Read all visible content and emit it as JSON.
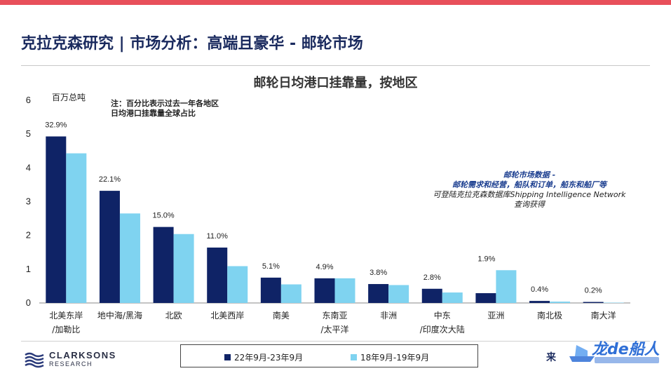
{
  "header": {
    "title": "克拉克森研究 | 市场分析：高端且豪华 - 邮轮市场"
  },
  "colors": {
    "accent_bar": "#e8505b",
    "series_dark": "#0f2366",
    "series_light": "#7fd3f0"
  },
  "note": {
    "line1": "注：百分比表示过去一年各地区",
    "line2": "日均港口挂靠量全球占比"
  },
  "promo": {
    "line1": "邮轮市场数据 -",
    "line2": "邮轮需求和经营，船队和订单，船东和船厂等",
    "line3": "可登陆克拉克森数据库Shipping Intelligence Network",
    "line4": "查询获得"
  },
  "footer": {
    "logo_name": "CLARKSONS",
    "logo_sub": "RESEARCH",
    "source_label": "来",
    "watermark_text": "龙de船人",
    "logo_icon": "clarksons-waves-icon"
  },
  "chart_data": {
    "type": "bar",
    "title": "邮轮日均港口挂靠量，按地区",
    "ylabel": "百万总吨",
    "xlabel": "",
    "ylim": [
      0,
      6
    ],
    "yticks": [
      0,
      1,
      2,
      3,
      4,
      5,
      6
    ],
    "grid": false,
    "legend_position": "bottom",
    "categories": [
      [
        "北美东岸",
        "/加勒比"
      ],
      [
        "地中海/黑海"
      ],
      [
        "北欧"
      ],
      [
        "北美西岸"
      ],
      [
        "南美"
      ],
      [
        "东南亚",
        "/太平洋"
      ],
      [
        "非洲"
      ],
      [
        "中东",
        "/印度次大陆"
      ],
      [
        "亚洲"
      ],
      [
        "南北极"
      ],
      [
        "南大洋"
      ]
    ],
    "series": [
      {
        "name": "22年9月-23年9月",
        "values": [
          4.93,
          3.32,
          2.25,
          1.64,
          0.75,
          0.73,
          0.56,
          0.42,
          0.29,
          0.06,
          0.03
        ]
      },
      {
        "name": "18年9月-19年9月",
        "values": [
          4.43,
          2.65,
          2.04,
          1.09,
          0.55,
          0.73,
          0.53,
          0.31,
          0.97,
          0.04,
          0.01
        ]
      }
    ],
    "data_labels": [
      "32.9%",
      "22.1%",
      "15.0%",
      "11.0%",
      "5.1%",
      "4.9%",
      "3.8%",
      "2.8%",
      "1.9%",
      "0.4%",
      "0.2%"
    ]
  }
}
